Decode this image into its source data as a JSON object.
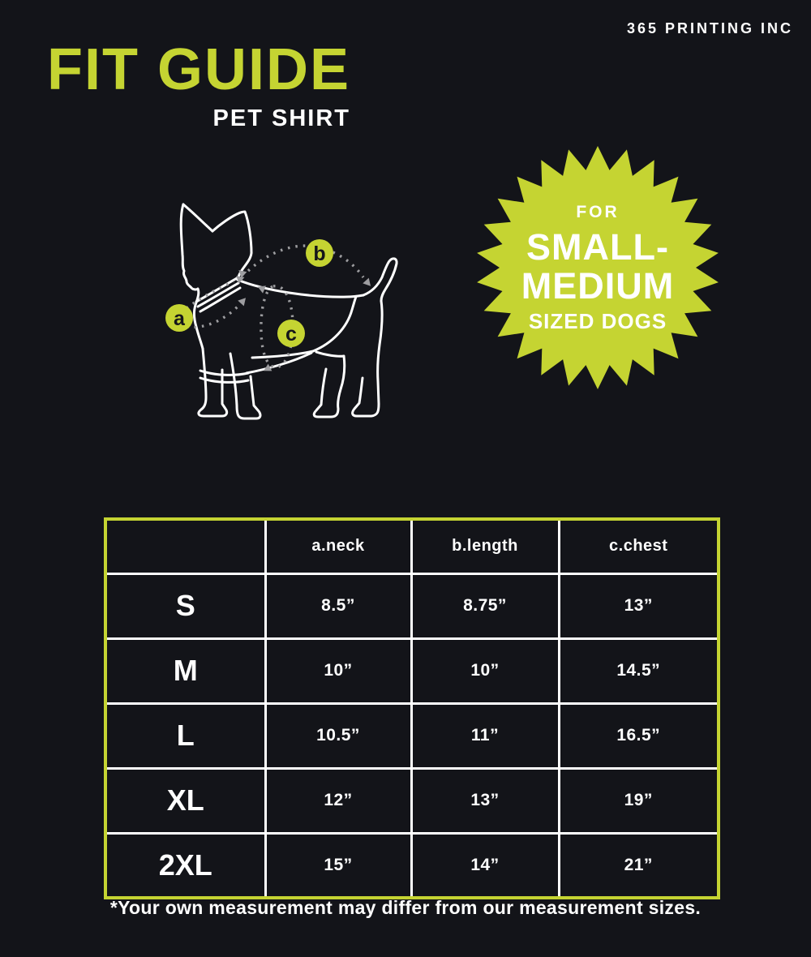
{
  "brand": "365 PRINTING INC",
  "header": {
    "title": "FIT GUIDE",
    "subtitle": "PET SHIRT"
  },
  "badge": {
    "lines": [
      "FOR",
      "SMALL-",
      "MEDIUM",
      "SIZED DOGS"
    ]
  },
  "diagram": {
    "markers": [
      {
        "label": "a"
      },
      {
        "label": "b"
      },
      {
        "label": "c"
      }
    ]
  },
  "table": {
    "headers": [
      "",
      "a.neck",
      "b.length",
      "c.chest"
    ],
    "rows": [
      {
        "size": "S",
        "values": [
          "8.5”",
          "8.75”",
          "13”"
        ]
      },
      {
        "size": "M",
        "values": [
          "10”",
          "10”",
          "14.5”"
        ]
      },
      {
        "size": "L",
        "values": [
          "10.5”",
          "11”",
          "16.5”"
        ]
      },
      {
        "size": "XL",
        "values": [
          "12”",
          "13”",
          "19”"
        ]
      },
      {
        "size": "2XL",
        "values": [
          "15”",
          "14”",
          "21”"
        ]
      }
    ]
  },
  "footnote": "*Your own measurement may differ from our measurement sizes.",
  "colors": {
    "background": "#131419",
    "accent": "#c5d432",
    "text": "#ffffff"
  }
}
